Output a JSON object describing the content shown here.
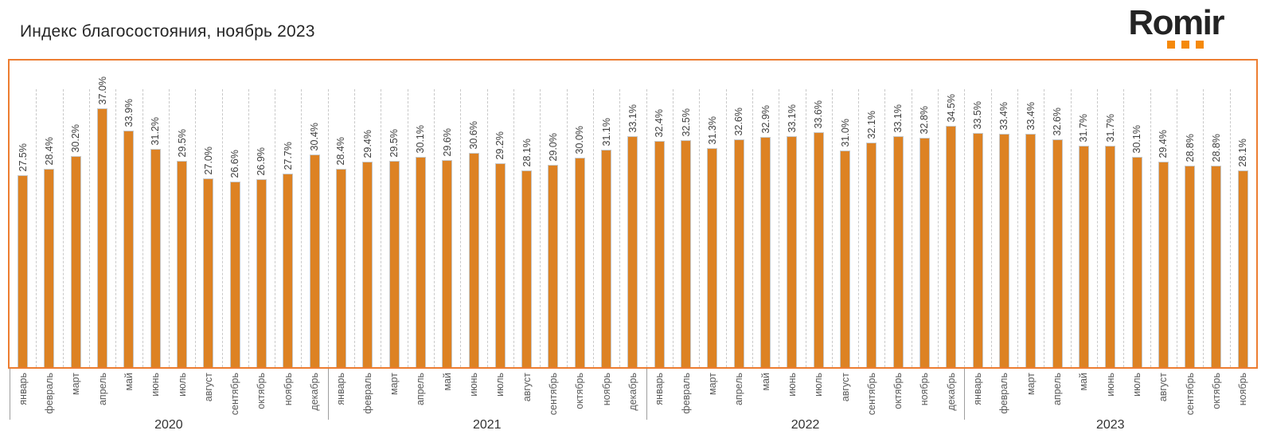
{
  "header": {
    "title": "Индекс благосостояния, ноябрь 2023"
  },
  "logo": {
    "text": "Romir",
    "accent_color": "#F5890A",
    "text_color": "#242424"
  },
  "chart_data": {
    "type": "bar",
    "title": "Индекс благосостояния, ноябрь 2023",
    "xlabel": "",
    "ylabel": "",
    "ylim": [
      0,
      40
    ],
    "grid": "vertical-dashed-between-categories",
    "legend": "none",
    "bar_color": "#DD8223",
    "bar_border_color": "#c6c6c6",
    "frame_color": "#ED7D31",
    "value_suffix": "%",
    "groups": [
      {
        "year": "2020",
        "categories": [
          "январь",
          "февраль",
          "март",
          "апрель",
          "май",
          "июнь",
          "июль",
          "август",
          "сентябрь",
          "октябрь",
          "ноябрь",
          "декабрь"
        ],
        "values": [
          27.5,
          28.4,
          30.2,
          37.0,
          33.9,
          31.2,
          29.5,
          27.0,
          26.6,
          26.9,
          27.7,
          30.4
        ]
      },
      {
        "year": "2021",
        "categories": [
          "январь",
          "февраль",
          "март",
          "апрель",
          "май",
          "июнь",
          "июль",
          "август",
          "сентябрь",
          "октябрь",
          "ноябрь",
          "декабрь"
        ],
        "values": [
          28.4,
          29.4,
          29.5,
          30.1,
          29.6,
          30.6,
          29.2,
          28.1,
          29.0,
          30.0,
          31.1,
          33.1
        ]
      },
      {
        "year": "2022",
        "categories": [
          "январь",
          "февраль",
          "март",
          "апрель",
          "май",
          "июнь",
          "июль",
          "август",
          "сентябрь",
          "октябрь",
          "ноябрь",
          "декабрь"
        ],
        "values": [
          32.4,
          32.5,
          31.3,
          32.6,
          32.9,
          33.1,
          33.6,
          31.0,
          32.1,
          33.1,
          32.8,
          34.5
        ]
      },
      {
        "year": "2023",
        "categories": [
          "январь",
          "февраль",
          "март",
          "апрель",
          "май",
          "июнь",
          "июль",
          "август",
          "сентябрь",
          "октябрь",
          "ноябрь"
        ],
        "values": [
          33.5,
          33.4,
          33.4,
          32.6,
          31.7,
          31.7,
          30.1,
          29.4,
          28.8,
          28.8,
          28.1
        ]
      }
    ]
  }
}
